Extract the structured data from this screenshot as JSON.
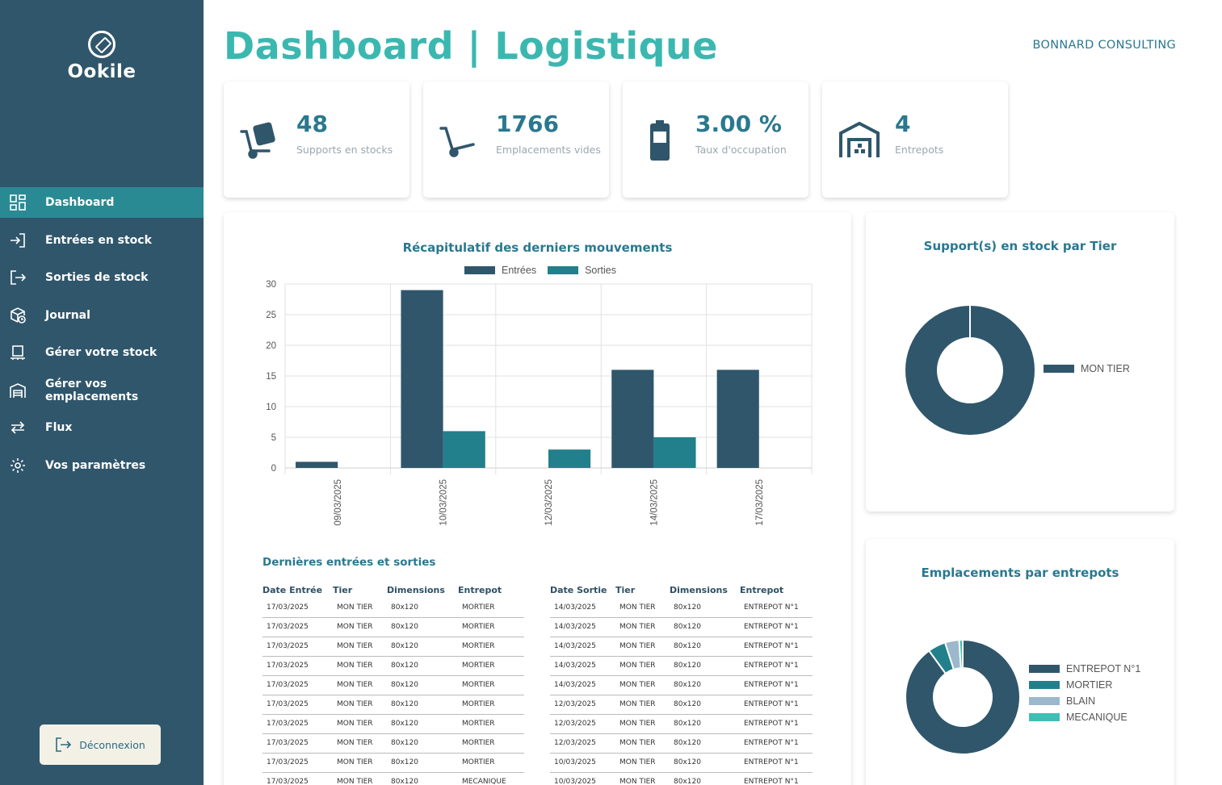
{
  "app": {
    "logo_text": "Ookile",
    "page_title": "Dashboard | Logistique",
    "company": "BONNARD CONSULTING"
  },
  "sidebar": {
    "items": [
      {
        "label": "Dashboard",
        "icon": "grid-icon",
        "active": true
      },
      {
        "label": "Entrées en stock",
        "icon": "login-arrow-icon",
        "active": false
      },
      {
        "label": "Sorties de stock",
        "icon": "logout-arrow-icon",
        "active": false
      },
      {
        "label": "Journal",
        "icon": "box-clock-icon",
        "active": false
      },
      {
        "label": "Gérer votre stock",
        "icon": "pallet-stack-icon",
        "active": false
      },
      {
        "label": "Gérer vos emplacements",
        "icon": "warehouse-icon",
        "active": false
      },
      {
        "label": "Flux",
        "icon": "swap-arrows-icon",
        "active": false
      },
      {
        "label": "Vos paramètres",
        "icon": "gear-icon",
        "active": false
      }
    ],
    "logout_label": "Déconnexion"
  },
  "kpis": [
    {
      "value": "48",
      "label": "Supports en stocks",
      "icon": "hand-truck-box-icon"
    },
    {
      "value": "1766",
      "label": "Emplacements vides",
      "icon": "hand-truck-empty-icon"
    },
    {
      "value": "3.00 %",
      "label": "Taux d'occupation",
      "icon": "battery-icon"
    },
    {
      "value": "4",
      "label": "Entrepots",
      "icon": "warehouse-icon"
    }
  ],
  "movements_chart": {
    "title": "Récapitulatif des derniers mouvements",
    "chart_data": {
      "type": "bar",
      "categories": [
        "09/03/2025",
        "10/03/2025",
        "12/03/2025",
        "14/03/2025",
        "17/03/2025"
      ],
      "series": [
        {
          "name": "Entrées",
          "values": [
            1,
            29,
            0,
            16,
            16
          ],
          "color": "#30566b"
        },
        {
          "name": "Sorties",
          "values": [
            0,
            6,
            3,
            5,
            0
          ],
          "color": "#21808b"
        }
      ],
      "yticks": [
        "0",
        "5",
        "10",
        "15",
        "20",
        "25",
        "30"
      ],
      "ylim": [
        0,
        30
      ],
      "grid": true,
      "legend": "top"
    }
  },
  "tier_chart": {
    "title": "Support(s) en stock par Tier",
    "chart_data": {
      "type": "pie",
      "labels": [
        "MON TIER"
      ],
      "values": [
        48
      ],
      "colors": [
        "#30566b"
      ],
      "legend": "right"
    }
  },
  "warehouse_chart": {
    "title": "Emplacements par entrepots",
    "chart_data": {
      "type": "pie",
      "labels": [
        "ENTREPOT N°1",
        "MORTIER",
        "BLAIN",
        "MECANIQUE"
      ],
      "values": [
        90,
        5,
        4,
        1
      ],
      "colors": [
        "#30566b",
        "#21808b",
        "#9bb8cc",
        "#3ebfb5"
      ],
      "legend": "right"
    }
  },
  "tables": {
    "title": "Dernières entrées et sorties",
    "entries": {
      "headers": [
        "Date Entrée",
        "Tier",
        "Dimensions",
        "Entrepot"
      ],
      "rows": [
        [
          "17/03/2025",
          "MON TIER",
          "80x120",
          "MORTIER"
        ],
        [
          "17/03/2025",
          "MON TIER",
          "80x120",
          "MORTIER"
        ],
        [
          "17/03/2025",
          "MON TIER",
          "80x120",
          "MORTIER"
        ],
        [
          "17/03/2025",
          "MON TIER",
          "80x120",
          "MORTIER"
        ],
        [
          "17/03/2025",
          "MON TIER",
          "80x120",
          "MORTIER"
        ],
        [
          "17/03/2025",
          "MON TIER",
          "80x120",
          "MORTIER"
        ],
        [
          "17/03/2025",
          "MON TIER",
          "80x120",
          "MORTIER"
        ],
        [
          "17/03/2025",
          "MON TIER",
          "80x120",
          "MORTIER"
        ],
        [
          "17/03/2025",
          "MON TIER",
          "80x120",
          "MORTIER"
        ],
        [
          "17/03/2025",
          "MON TIER",
          "80x120",
          "MECANIQUE"
        ]
      ]
    },
    "exits": {
      "headers": [
        "Date Sortie",
        "Tier",
        "Dimensions",
        "Entrepot"
      ],
      "rows": [
        [
          "14/03/2025",
          "MON TIER",
          "80x120",
          "ENTREPOT N°1"
        ],
        [
          "14/03/2025",
          "MON TIER",
          "80x120",
          "ENTREPOT N°1"
        ],
        [
          "14/03/2025",
          "MON TIER",
          "80x120",
          "ENTREPOT N°1"
        ],
        [
          "14/03/2025",
          "MON TIER",
          "80x120",
          "ENTREPOT N°1"
        ],
        [
          "14/03/2025",
          "MON TIER",
          "80x120",
          "ENTREPOT N°1"
        ],
        [
          "12/03/2025",
          "MON TIER",
          "80x120",
          "ENTREPOT N°1"
        ],
        [
          "12/03/2025",
          "MON TIER",
          "80x120",
          "ENTREPOT N°1"
        ],
        [
          "12/03/2025",
          "MON TIER",
          "80x120",
          "ENTREPOT N°1"
        ],
        [
          "10/03/2025",
          "MON TIER",
          "80x120",
          "ENTREPOT N°1"
        ],
        [
          "10/03/2025",
          "MON TIER",
          "80x120",
          "ENTREPOT N°1"
        ]
      ]
    }
  }
}
